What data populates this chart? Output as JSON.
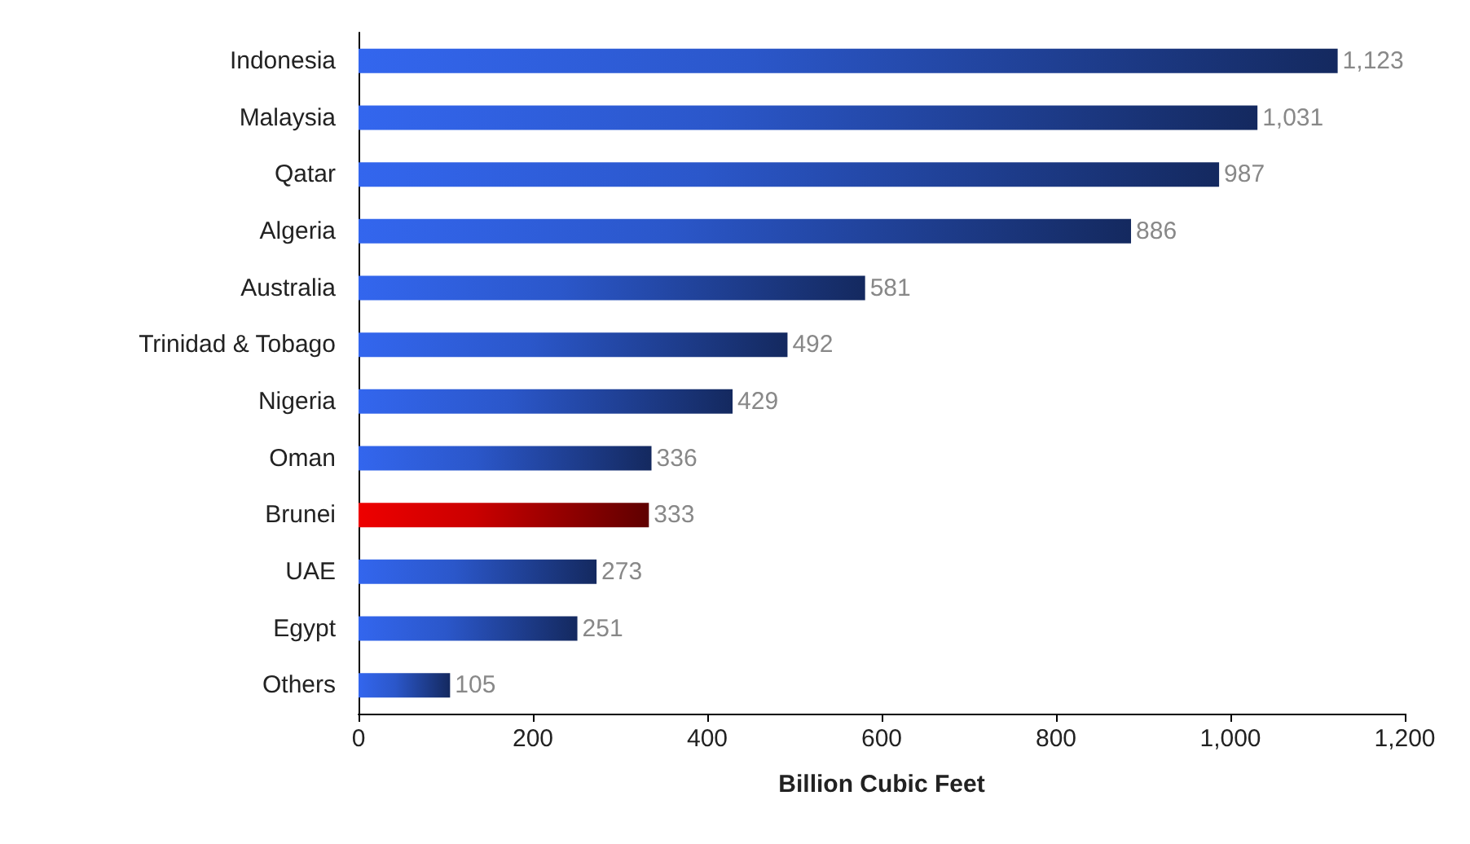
{
  "chart_data": {
    "type": "bar",
    "orientation": "horizontal",
    "xlabel": "Billion Cubic Feet",
    "categories": [
      "Indonesia",
      "Malaysia",
      "Qatar",
      "Algeria",
      "Australia",
      "Trinidad & Tobago",
      "Nigeria",
      "Oman",
      "Brunei",
      "UAE",
      "Egypt",
      "Others"
    ],
    "values": [
      1123,
      1031,
      987,
      886,
      581,
      492,
      429,
      336,
      333,
      273,
      251,
      105
    ],
    "value_labels": [
      "1,123",
      "1,031",
      "987",
      "886",
      "581",
      "492",
      "429",
      "336",
      "333",
      "273",
      "251",
      "105"
    ],
    "colors": [
      "#3366ee",
      "#3366ee",
      "#3366ee",
      "#3366ee",
      "#3366ee",
      "#3366ee",
      "#3366ee",
      "#3366ee",
      "#ee0000",
      "#3366ee",
      "#3366ee",
      "#3366ee"
    ],
    "xlim": [
      0,
      1200
    ],
    "xticks": [
      0,
      200,
      400,
      600,
      800,
      {
        "value": 1000,
        "label": "1,000"
      },
      {
        "value": 1200,
        "label": "1,200"
      }
    ],
    "grid": false
  }
}
